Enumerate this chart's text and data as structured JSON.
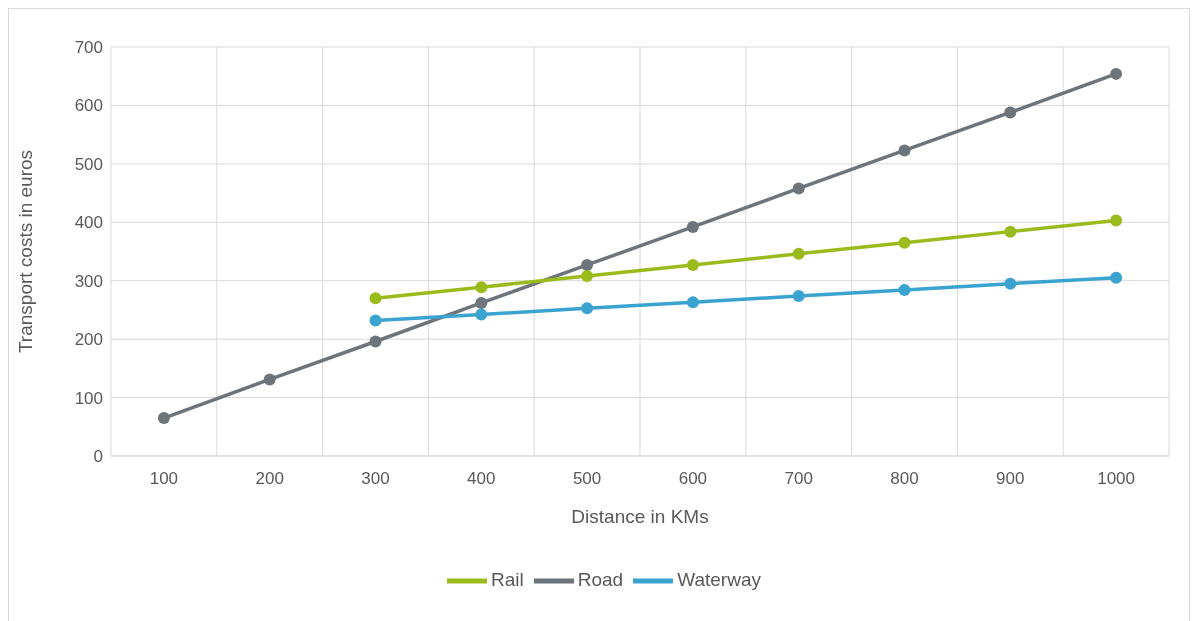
{
  "chart_data": {
    "type": "line",
    "xlabel": "Distance in KMs",
    "ylabel": "Transport costs in euros",
    "categories": [
      "100",
      "200",
      "300",
      "400",
      "500",
      "600",
      "700",
      "800",
      "900",
      "1000"
    ],
    "series": [
      {
        "name": "Road",
        "color": "#6d747a",
        "values": [
          65,
          131,
          196,
          262,
          327,
          392,
          458,
          523,
          588,
          654
        ]
      },
      {
        "name": "Rail",
        "color": "#9bbb1c",
        "values": [
          null,
          null,
          270,
          289,
          308,
          327,
          346,
          365,
          384,
          403
        ]
      },
      {
        "name": "Waterway",
        "color": "#3ba3d0",
        "values": [
          null,
          null,
          232,
          242,
          253,
          263,
          274,
          284,
          295,
          305
        ]
      }
    ],
    "ylim": [
      0,
      700
    ],
    "yticks": [
      0,
      100,
      200,
      300,
      400,
      500,
      600,
      700
    ],
    "grid": true,
    "legend": "bottom",
    "marker": "circle",
    "line_style": "solid"
  }
}
